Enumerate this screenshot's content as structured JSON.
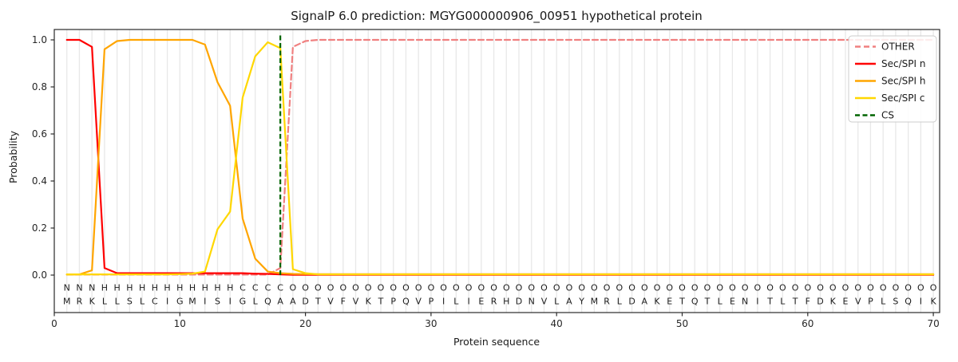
{
  "chart_data": {
    "type": "line",
    "title": "SignalP 6.0 prediction: MGYG000000906_00951 hypothetical protein",
    "xlabel": "Protein sequence",
    "ylabel": "Probability",
    "xlim": [
      0,
      70.5
    ],
    "ylim": [
      0,
      1.04
    ],
    "x_ticks": [
      0,
      10,
      20,
      30,
      40,
      50,
      60,
      70
    ],
    "y_ticks": [
      0.0,
      0.2,
      0.4,
      0.6,
      0.8,
      1.0
    ],
    "grid": "vertical gridline at every residue position 1-70",
    "legend_position": "upper right",
    "x_positions": "residues 1 to 70",
    "series": [
      {
        "name": "OTHER",
        "color": "#f08080",
        "style": "dashed",
        "values": [
          0.002,
          0.002,
          0.002,
          0.002,
          0.002,
          0.002,
          0.002,
          0.002,
          0.002,
          0.002,
          0.002,
          0.002,
          0.002,
          0.002,
          0.002,
          0.002,
          0.002,
          0.03,
          0.97,
          0.995,
          1,
          1,
          1,
          1,
          1,
          1,
          1,
          1,
          1,
          1,
          1,
          1,
          1,
          1,
          1,
          1,
          1,
          1,
          1,
          1,
          1,
          1,
          1,
          1,
          1,
          1,
          1,
          1,
          1,
          1,
          1,
          1,
          1,
          1,
          1,
          1,
          1,
          1,
          1,
          1,
          1,
          1,
          1,
          1,
          1,
          1,
          1,
          1,
          1,
          1
        ]
      },
      {
        "name": "Sec/SPI n",
        "color": "#ff0000",
        "style": "solid",
        "values": [
          1,
          1,
          0.97,
          0.03,
          0.008,
          0.008,
          0.008,
          0.008,
          0.008,
          0.008,
          0.008,
          0.008,
          0.008,
          0.008,
          0.008,
          0.006,
          0.005,
          0.003,
          0.001,
          0.001,
          0.001,
          0.001,
          0.001,
          0.001,
          0.001,
          0.001,
          0.001,
          0.001,
          0.001,
          0.001,
          0.001,
          0.001,
          0.001,
          0.001,
          0.001,
          0.001,
          0.001,
          0.001,
          0.001,
          0.001,
          0.001,
          0.001,
          0.001,
          0.001,
          0.001,
          0.001,
          0.001,
          0.001,
          0.001,
          0.001,
          0.001,
          0.001,
          0.001,
          0.001,
          0.001,
          0.001,
          0.001,
          0.001,
          0.001,
          0.001,
          0.001,
          0.001,
          0.001,
          0.001,
          0.001,
          0.001,
          0.001,
          0.001,
          0.001,
          0.001
        ]
      },
      {
        "name": "Sec/SPI h",
        "color": "#ffa500",
        "style": "solid",
        "values": [
          0.002,
          0.003,
          0.02,
          0.96,
          0.995,
          1,
          1,
          1,
          1,
          1,
          1,
          0.98,
          0.82,
          0.72,
          0.24,
          0.07,
          0.015,
          0.008,
          0.005,
          0.004,
          0.004,
          0.004,
          0.004,
          0.004,
          0.004,
          0.004,
          0.004,
          0.004,
          0.004,
          0.004,
          0.004,
          0.004,
          0.004,
          0.004,
          0.004,
          0.004,
          0.004,
          0.004,
          0.004,
          0.004,
          0.004,
          0.004,
          0.004,
          0.004,
          0.004,
          0.004,
          0.004,
          0.004,
          0.004,
          0.004,
          0.004,
          0.004,
          0.004,
          0.004,
          0.004,
          0.004,
          0.004,
          0.004,
          0.004,
          0.004,
          0.004,
          0.004,
          0.004,
          0.004,
          0.004,
          0.004,
          0.004,
          0.004,
          0.004,
          0.004
        ]
      },
      {
        "name": "Sec/SPI c",
        "color": "#ffd700",
        "style": "solid",
        "values": [
          0.003,
          0.003,
          0.003,
          0.003,
          0.003,
          0.003,
          0.003,
          0.003,
          0.003,
          0.004,
          0.006,
          0.015,
          0.195,
          0.27,
          0.755,
          0.93,
          0.99,
          0.965,
          0.025,
          0.008,
          0.003,
          0.003,
          0.003,
          0.003,
          0.003,
          0.003,
          0.003,
          0.003,
          0.003,
          0.003,
          0.003,
          0.003,
          0.003,
          0.003,
          0.003,
          0.003,
          0.003,
          0.003,
          0.003,
          0.003,
          0.003,
          0.003,
          0.003,
          0.003,
          0.003,
          0.003,
          0.003,
          0.003,
          0.003,
          0.003,
          0.003,
          0.003,
          0.003,
          0.003,
          0.003,
          0.003,
          0.003,
          0.003,
          0.003,
          0.003,
          0.003,
          0.003,
          0.003,
          0.003,
          0.003,
          0.003,
          0.003,
          0.003,
          0.003,
          0.003
        ]
      }
    ],
    "cs_line": {
      "name": "CS",
      "color": "#006400",
      "style": "dashed",
      "position": 18
    },
    "sequence": "MRKLLSLCIGMISIGLQAADTVFVKTPQVPILIERHDNVLAYMRLDAKETQTLENITLTFDKEVPLSQIK",
    "regions": "NNNHHHHHHHHHHHCCCCOOOOOOOOOOOOOOOOOOOOOOOOOOOOOOOOOOOOOOOOOOOOOOOOOO",
    "region_colors": {
      "N": "#ff0000",
      "H": "#ffa500",
      "C": "#f0c000",
      "O": "#8a8a8a"
    },
    "sequence_color": "#3a3a3a"
  },
  "legend": {
    "items": [
      {
        "label": "OTHER",
        "color": "#f08080",
        "dasharray": "7 4"
      },
      {
        "label": "Sec/SPI n",
        "color": "#ff0000",
        "dasharray": "none"
      },
      {
        "label": "Sec/SPI h",
        "color": "#ffa500",
        "dasharray": "none"
      },
      {
        "label": "Sec/SPI c",
        "color": "#ffd700",
        "dasharray": "none"
      },
      {
        "label": "CS",
        "color": "#006400",
        "dasharray": "6 3.5"
      }
    ]
  }
}
